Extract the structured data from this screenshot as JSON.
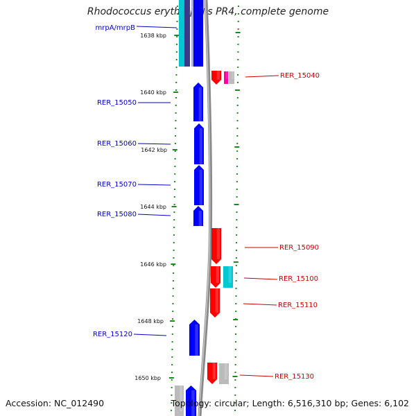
{
  "title": "Rhodococcus erythropolis PR4, complete genome",
  "accession": "Accession: NC_012490",
  "topology": "Topology: circular; Length: 6,516,310 bp; Genes: 6,102",
  "colors": {
    "forward": "#ff0000",
    "reverse": "#0000ff",
    "cyan": "#00c8d2",
    "magenta": "#ff00a0",
    "gray": "#bbbbbb",
    "navy": "#3a3a8a",
    "ticks": "#1a8a1a",
    "backbone": "#8a8a8a",
    "left_label": "#0000cc",
    "right_label": "#cc0000"
  },
  "ruler": [
    {
      "label": "1638 kbp"
    },
    {
      "label": "1640 kbp"
    },
    {
      "label": "1642 kbp"
    },
    {
      "label": "1644 kbp"
    },
    {
      "label": "1646 kbp"
    },
    {
      "label": "1648 kbp"
    },
    {
      "label": "1650 kbp"
    }
  ],
  "left_genes": [
    {
      "label": "mrpA/mrpB"
    },
    {
      "label": "RER_15050"
    },
    {
      "label": "RER_15060"
    },
    {
      "label": "RER_15070"
    },
    {
      "label": "RER_15080"
    },
    {
      "label": "RER_15120"
    }
  ],
  "right_genes": [
    {
      "label": "RER_15040"
    },
    {
      "label": "RER_15090"
    },
    {
      "label": "RER_15100"
    },
    {
      "label": "RER_15110"
    },
    {
      "label": "RER_15130"
    }
  ]
}
